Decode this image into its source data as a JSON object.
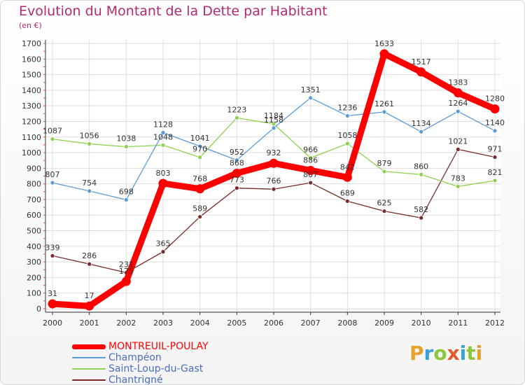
{
  "header": {
    "title": "Evolution du Montant de la Dette par Habitant",
    "subtitle": "(en €)"
  },
  "brand": {
    "letters": [
      "P",
      "r",
      "o",
      "x",
      "i",
      "t",
      "i"
    ],
    "colors": [
      "#e8a12b",
      "#3aa0d8",
      "#8cc63f",
      "#e05a2a",
      "#3aa0d8",
      "#8cc63f",
      "#e8a12b"
    ]
  },
  "chart_data": {
    "type": "line",
    "title": "Evolution du Montant de la Dette par Habitant",
    "subtitle": "(en €)",
    "xlabel": "",
    "ylabel": "",
    "ylim": [
      0,
      1700
    ],
    "yticks": [
      0,
      100,
      200,
      300,
      400,
      500,
      600,
      700,
      800,
      900,
      1000,
      1100,
      1200,
      1300,
      1400,
      1500,
      1600,
      1700
    ],
    "grid": true,
    "legend_position": "bottom-left",
    "categories": [
      "2000",
      "2001",
      "2002",
      "2003",
      "2004",
      "2005",
      "2006",
      "2007",
      "2008",
      "2009",
      "2010",
      "2011",
      "2012"
    ],
    "series": [
      {
        "name": "MONTREUIL-POULAY",
        "color": "#ff0000",
        "values": [
          31,
          17,
          175,
          803,
          768,
          868,
          932,
          886,
          842,
          1633,
          1517,
          1383,
          1280
        ],
        "labels": [
          "31",
          "17",
          "175",
          "803",
          "768",
          "868",
          "932",
          "886",
          "842",
          "1633",
          "1517",
          "1383",
          "1280"
        ]
      },
      {
        "name": "Champéon",
        "color": "#5b9bd5",
        "values": [
          807,
          754,
          698,
          1128,
          1041,
          952,
          1158,
          1351,
          1236,
          1261,
          1134,
          1264,
          1140
        ],
        "labels": [
          "807",
          "754",
          "698",
          "1128",
          "1041",
          "952",
          "1158",
          "1351",
          "1236",
          "1261",
          "1134",
          "1264",
          "1140"
        ]
      },
      {
        "name": "Saint-Loup-du-Gast",
        "color": "#8fd14f",
        "values": [
          1087,
          1056,
          1038,
          1048,
          970,
          1223,
          1184,
          966,
          1058,
          879,
          860,
          783,
          821
        ],
        "labels": [
          "1087",
          "1056",
          "1038",
          "1048",
          "970",
          "1223",
          "1184",
          "966",
          "1058",
          "879",
          "860",
          "783",
          "821"
        ]
      },
      {
        "name": "Chantrigné",
        "color": "#7a2a2a",
        "values": [
          339,
          286,
          231,
          365,
          589,
          773,
          766,
          807,
          689,
          625,
          582,
          1021,
          971
        ],
        "labels": [
          "339",
          "286",
          "231",
          "365",
          "589",
          "773",
          "766",
          "807",
          "689",
          "625",
          "582",
          "1021",
          "971"
        ]
      }
    ]
  }
}
